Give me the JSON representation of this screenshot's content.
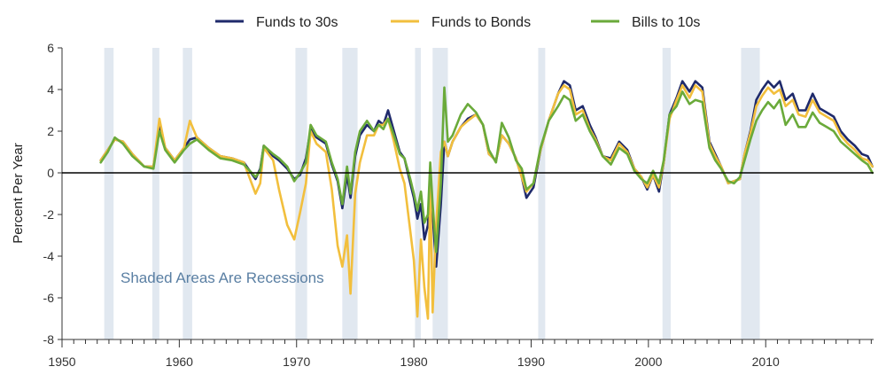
{
  "chart_data": {
    "type": "line",
    "title": "",
    "xlabel": "",
    "ylabel": "Percent Per Year",
    "xlim": [
      1950,
      2019.2
    ],
    "ylim": [
      -8,
      6
    ],
    "x_ticks": [
      1950,
      1960,
      1970,
      1980,
      1990,
      2000,
      2010
    ],
    "x_tick_labels": [
      "1950",
      "1960",
      "1970",
      "1980",
      "1990",
      "2000",
      "2010"
    ],
    "y_ticks": [
      -8,
      -6,
      -4,
      -2,
      0,
      2,
      4,
      6
    ],
    "y_tick_labels": [
      "-8",
      "-6",
      "-4",
      "-2",
      "0",
      "2",
      "4",
      "6"
    ],
    "legend_position": "top",
    "annotation": "Shaded Areas Are Recessions",
    "recessions": [
      [
        1953.6,
        1954.4
      ],
      [
        1957.7,
        1958.3
      ],
      [
        1960.3,
        1961.1
      ],
      [
        1969.9,
        1970.9
      ],
      [
        1973.9,
        1975.2
      ],
      [
        1980.1,
        1980.6
      ],
      [
        1981.6,
        1982.9
      ],
      [
        1990.6,
        1991.2
      ],
      [
        2001.2,
        2001.9
      ],
      [
        2007.9,
        2009.5
      ]
    ],
    "colors": {
      "recession": "#e1e8f0",
      "zero_line": "#000000"
    },
    "series": [
      {
        "name": "Funds to 30s",
        "color": "#1f2a6b",
        "x": [
          1953.3,
          1953.9,
          1954.5,
          1955.2,
          1956,
          1957,
          1957.8,
          1958.3,
          1958.8,
          1959.6,
          1960.4,
          1960.9,
          1961.5,
          1962.5,
          1963.5,
          1964.5,
          1965.5,
          1966.5,
          1966.9,
          1967.2,
          1968,
          1968.5,
          1969.2,
          1969.8,
          1970.3,
          1970.8,
          1971.2,
          1971.7,
          1972.5,
          1973.0,
          1973.5,
          1973.9,
          1974.3,
          1974.6,
          1975.0,
          1975.4,
          1976,
          1976.6,
          1977.0,
          1977.4,
          1977.8,
          1978.3,
          1978.8,
          1979.2,
          1979.7,
          1980.0,
          1980.3,
          1980.6,
          1980.9,
          1981.2,
          1981.4,
          1981.6,
          1981.9,
          1982.3,
          1982.6,
          1982.9,
          1983.3,
          1984,
          1984.6,
          1985.3,
          1985.9,
          1986.4,
          1987.0,
          1987.5,
          1988.1,
          1988.7,
          1989.2,
          1989.6,
          1990.2,
          1990.8,
          1991.5,
          1992.3,
          1992.8,
          1993.3,
          1993.8,
          1994.4,
          1995,
          1995.5,
          1996.1,
          1996.8,
          1997.5,
          1998.2,
          1998.8,
          1999.4,
          1999.9,
          2000.4,
          2000.9,
          2001.3,
          2001.8,
          2002.4,
          2002.9,
          2003.5,
          2004,
          2004.6,
          2005.2,
          2005.7,
          2006.2,
          2006.8,
          2007.3,
          2007.8,
          2008.2,
          2008.7,
          2009.2,
          2009.7,
          2010.2,
          2010.7,
          2011.2,
          2011.7,
          2012.3,
          2012.8,
          2013.4,
          2014,
          2014.6,
          2015.2,
          2015.8,
          2016.4,
          2017,
          2017.6,
          2018.2,
          2018.7,
          2019.1
        ],
        "y": [
          0.6,
          1.1,
          1.6,
          1.5,
          0.9,
          0.3,
          0.3,
          2.2,
          1.2,
          0.6,
          1.2,
          1.6,
          1.7,
          1.2,
          0.8,
          0.7,
          0.5,
          -0.3,
          0.2,
          1.3,
          0.8,
          0.6,
          0.2,
          -0.3,
          -0.1,
          0.7,
          2.1,
          1.7,
          1.4,
          0.4,
          -0.4,
          -1.7,
          -0.1,
          -1.2,
          0.8,
          1.8,
          2.3,
          2.0,
          2.5,
          2.3,
          3.0,
          2.0,
          1.0,
          0.7,
          -0.5,
          -1.2,
          -2.2,
          -1.5,
          -3.2,
          -2.5,
          0.2,
          -2.0,
          -4.5,
          -1.5,
          1.5,
          0.8,
          1.5,
          2.2,
          2.6,
          2.8,
          2.3,
          0.9,
          0.6,
          1.8,
          1.4,
          0.7,
          -0.2,
          -1.2,
          -0.7,
          1.1,
          2.5,
          3.8,
          4.4,
          4.2,
          3.0,
          3.2,
          2.3,
          1.7,
          0.8,
          0.7,
          1.5,
          1.1,
          0.2,
          -0.2,
          -0.8,
          -0.1,
          -0.9,
          0.5,
          2.8,
          3.6,
          4.4,
          3.9,
          4.4,
          4.1,
          1.5,
          0.9,
          0.3,
          -0.5,
          -0.4,
          -0.3,
          0.9,
          2.0,
          3.5,
          4.0,
          4.4,
          4.1,
          4.4,
          3.5,
          3.8,
          3.0,
          3.0,
          3.8,
          3.1,
          2.9,
          2.7,
          2.0,
          1.6,
          1.3,
          0.9,
          0.8,
          0.3
        ]
      },
      {
        "name": "Funds to Bonds",
        "color": "#f2bf3d",
        "x": [
          1953.3,
          1953.9,
          1954.5,
          1955.2,
          1956,
          1957,
          1957.8,
          1958.3,
          1958.8,
          1959.6,
          1960.4,
          1960.9,
          1961.5,
          1962.5,
          1963.5,
          1964.5,
          1965.5,
          1966.5,
          1966.9,
          1967.2,
          1968,
          1968.5,
          1969.2,
          1969.8,
          1970.3,
          1970.8,
          1971.2,
          1971.7,
          1972.5,
          1973.0,
          1973.5,
          1973.9,
          1974.3,
          1974.6,
          1975.0,
          1975.4,
          1976,
          1976.6,
          1977.0,
          1977.4,
          1977.8,
          1978.3,
          1978.8,
          1979.2,
          1979.7,
          1980.0,
          1980.3,
          1980.6,
          1980.9,
          1981.2,
          1981.4,
          1981.6,
          1981.9,
          1982.3,
          1982.6,
          1982.9,
          1983.3,
          1984,
          1984.6,
          1985.3,
          1985.9,
          1986.4,
          1987.0,
          1987.5,
          1988.1,
          1988.7,
          1989.2,
          1989.6,
          1990.2,
          1990.8,
          1991.5,
          1992.3,
          1992.8,
          1993.3,
          1993.8,
          1994.4,
          1995,
          1995.5,
          1996.1,
          1996.8,
          1997.5,
          1998.2,
          1998.8,
          1999.4,
          1999.9,
          2000.4,
          2000.9,
          2001.3,
          2001.8,
          2002.4,
          2002.9,
          2003.5,
          2004,
          2004.6,
          2005.2,
          2005.7,
          2006.2,
          2006.8,
          2007.3,
          2007.8,
          2008.2,
          2008.7,
          2009.2,
          2009.7,
          2010.2,
          2010.7,
          2011.2,
          2011.7,
          2012.3,
          2012.8,
          2013.4,
          2014,
          2014.6,
          2015.2,
          2015.8,
          2016.4,
          2017,
          2017.6,
          2018.2,
          2018.7,
          2019.1
        ],
        "y": [
          0.6,
          1.1,
          1.6,
          1.5,
          0.9,
          0.3,
          0.3,
          2.6,
          1.2,
          0.6,
          1.2,
          2.5,
          1.7,
          1.2,
          0.8,
          0.7,
          0.5,
          -1.0,
          -0.5,
          1.2,
          0.6,
          -0.8,
          -2.5,
          -3.2,
          -1.9,
          -0.5,
          2.0,
          1.4,
          1.0,
          -0.8,
          -3.5,
          -4.5,
          -3.0,
          -5.8,
          -1.0,
          0.5,
          1.8,
          1.8,
          2.3,
          2.3,
          2.6,
          1.5,
          0.2,
          -0.5,
          -2.8,
          -4.2,
          -6.9,
          -3.2,
          -5.5,
          -7.0,
          -0.5,
          -6.7,
          -2.5,
          1.0,
          1.5,
          0.8,
          1.5,
          2.2,
          2.5,
          2.8,
          2.3,
          0.9,
          0.6,
          1.8,
          1.4,
          0.7,
          -0.2,
          -0.9,
          -0.5,
          1.1,
          2.5,
          3.8,
          4.2,
          4.0,
          2.8,
          3.0,
          2.1,
          1.6,
          0.8,
          0.6,
          1.4,
          1.0,
          0.2,
          -0.2,
          -0.7,
          -0.1,
          -0.7,
          0.5,
          2.6,
          3.5,
          4.2,
          3.6,
          4.2,
          3.9,
          1.4,
          0.8,
          0.3,
          -0.5,
          -0.4,
          -0.3,
          0.9,
          1.9,
          3.2,
          3.7,
          4.1,
          3.8,
          4.0,
          3.2,
          3.5,
          2.8,
          2.7,
          3.5,
          2.9,
          2.7,
          2.5,
          1.8,
          1.4,
          1.1,
          0.7,
          0.6,
          0.3
        ]
      },
      {
        "name": "Bills to 10s",
        "color": "#6aaa3a",
        "x": [
          1953.3,
          1953.9,
          1954.5,
          1955.2,
          1956,
          1957,
          1957.8,
          1958.3,
          1958.8,
          1959.6,
          1960.4,
          1960.9,
          1961.5,
          1962.5,
          1963.5,
          1964.5,
          1965.5,
          1966.5,
          1966.9,
          1967.2,
          1968,
          1968.5,
          1969.2,
          1969.8,
          1970.3,
          1970.8,
          1971.2,
          1971.7,
          1972.5,
          1973.0,
          1973.5,
          1973.9,
          1974.3,
          1974.6,
          1975.0,
          1975.4,
          1976,
          1976.6,
          1977.0,
          1977.4,
          1977.8,
          1978.3,
          1978.8,
          1979.2,
          1979.7,
          1980.0,
          1980.3,
          1980.6,
          1980.9,
          1981.2,
          1981.4,
          1981.6,
          1981.9,
          1982.3,
          1982.6,
          1982.9,
          1983.3,
          1984,
          1984.6,
          1985.3,
          1985.9,
          1986.4,
          1987.0,
          1987.5,
          1988.1,
          1988.7,
          1989.2,
          1989.6,
          1990.2,
          1990.8,
          1991.5,
          1992.3,
          1992.8,
          1993.3,
          1993.8,
          1994.4,
          1995,
          1995.5,
          1996.1,
          1996.8,
          1997.5,
          1998.2,
          1998.8,
          1999.4,
          1999.9,
          2000.4,
          2000.9,
          2001.3,
          2001.8,
          2002.4,
          2002.9,
          2003.5,
          2004,
          2004.6,
          2005.2,
          2005.7,
          2006.2,
          2006.8,
          2007.3,
          2007.8,
          2008.2,
          2008.7,
          2009.2,
          2009.7,
          2010.2,
          2010.7,
          2011.2,
          2011.7,
          2012.3,
          2012.8,
          2013.4,
          2014,
          2014.6,
          2015.2,
          2015.8,
          2016.4,
          2017,
          2017.6,
          2018.2,
          2018.7,
          2019.1
        ],
        "y": [
          0.5,
          1.0,
          1.7,
          1.4,
          0.8,
          0.3,
          0.2,
          2.0,
          1.1,
          0.5,
          1.1,
          1.4,
          1.6,
          1.1,
          0.7,
          0.6,
          0.4,
          -0.2,
          0.1,
          1.3,
          0.9,
          0.7,
          0.3,
          -0.4,
          0.0,
          0.5,
          2.3,
          1.8,
          1.5,
          0.5,
          -0.3,
          -1.5,
          0.3,
          -1.0,
          1.0,
          2.0,
          2.5,
          2.0,
          2.3,
          2.1,
          2.6,
          1.8,
          0.9,
          0.7,
          -0.3,
          -1.0,
          -1.8,
          -0.9,
          -2.4,
          -2.0,
          0.5,
          -1.5,
          -3.8,
          -0.5,
          4.1,
          1.5,
          1.8,
          2.8,
          3.3,
          2.9,
          2.3,
          1.1,
          0.5,
          2.4,
          1.7,
          0.6,
          0.2,
          -0.8,
          -0.5,
          1.2,
          2.5,
          3.2,
          3.7,
          3.5,
          2.5,
          2.8,
          2.0,
          1.5,
          0.8,
          0.4,
          1.2,
          0.9,
          0.1,
          -0.3,
          -0.5,
          0.1,
          -0.5,
          0.6,
          2.8,
          3.2,
          3.9,
          3.3,
          3.5,
          3.4,
          1.2,
          0.6,
          0.2,
          -0.4,
          -0.5,
          -0.2,
          0.6,
          1.6,
          2.5,
          3.0,
          3.4,
          3.1,
          3.5,
          2.3,
          2.8,
          2.2,
          2.2,
          2.9,
          2.4,
          2.2,
          2.0,
          1.5,
          1.2,
          0.9,
          0.6,
          0.4,
          0.0
        ]
      }
    ]
  }
}
